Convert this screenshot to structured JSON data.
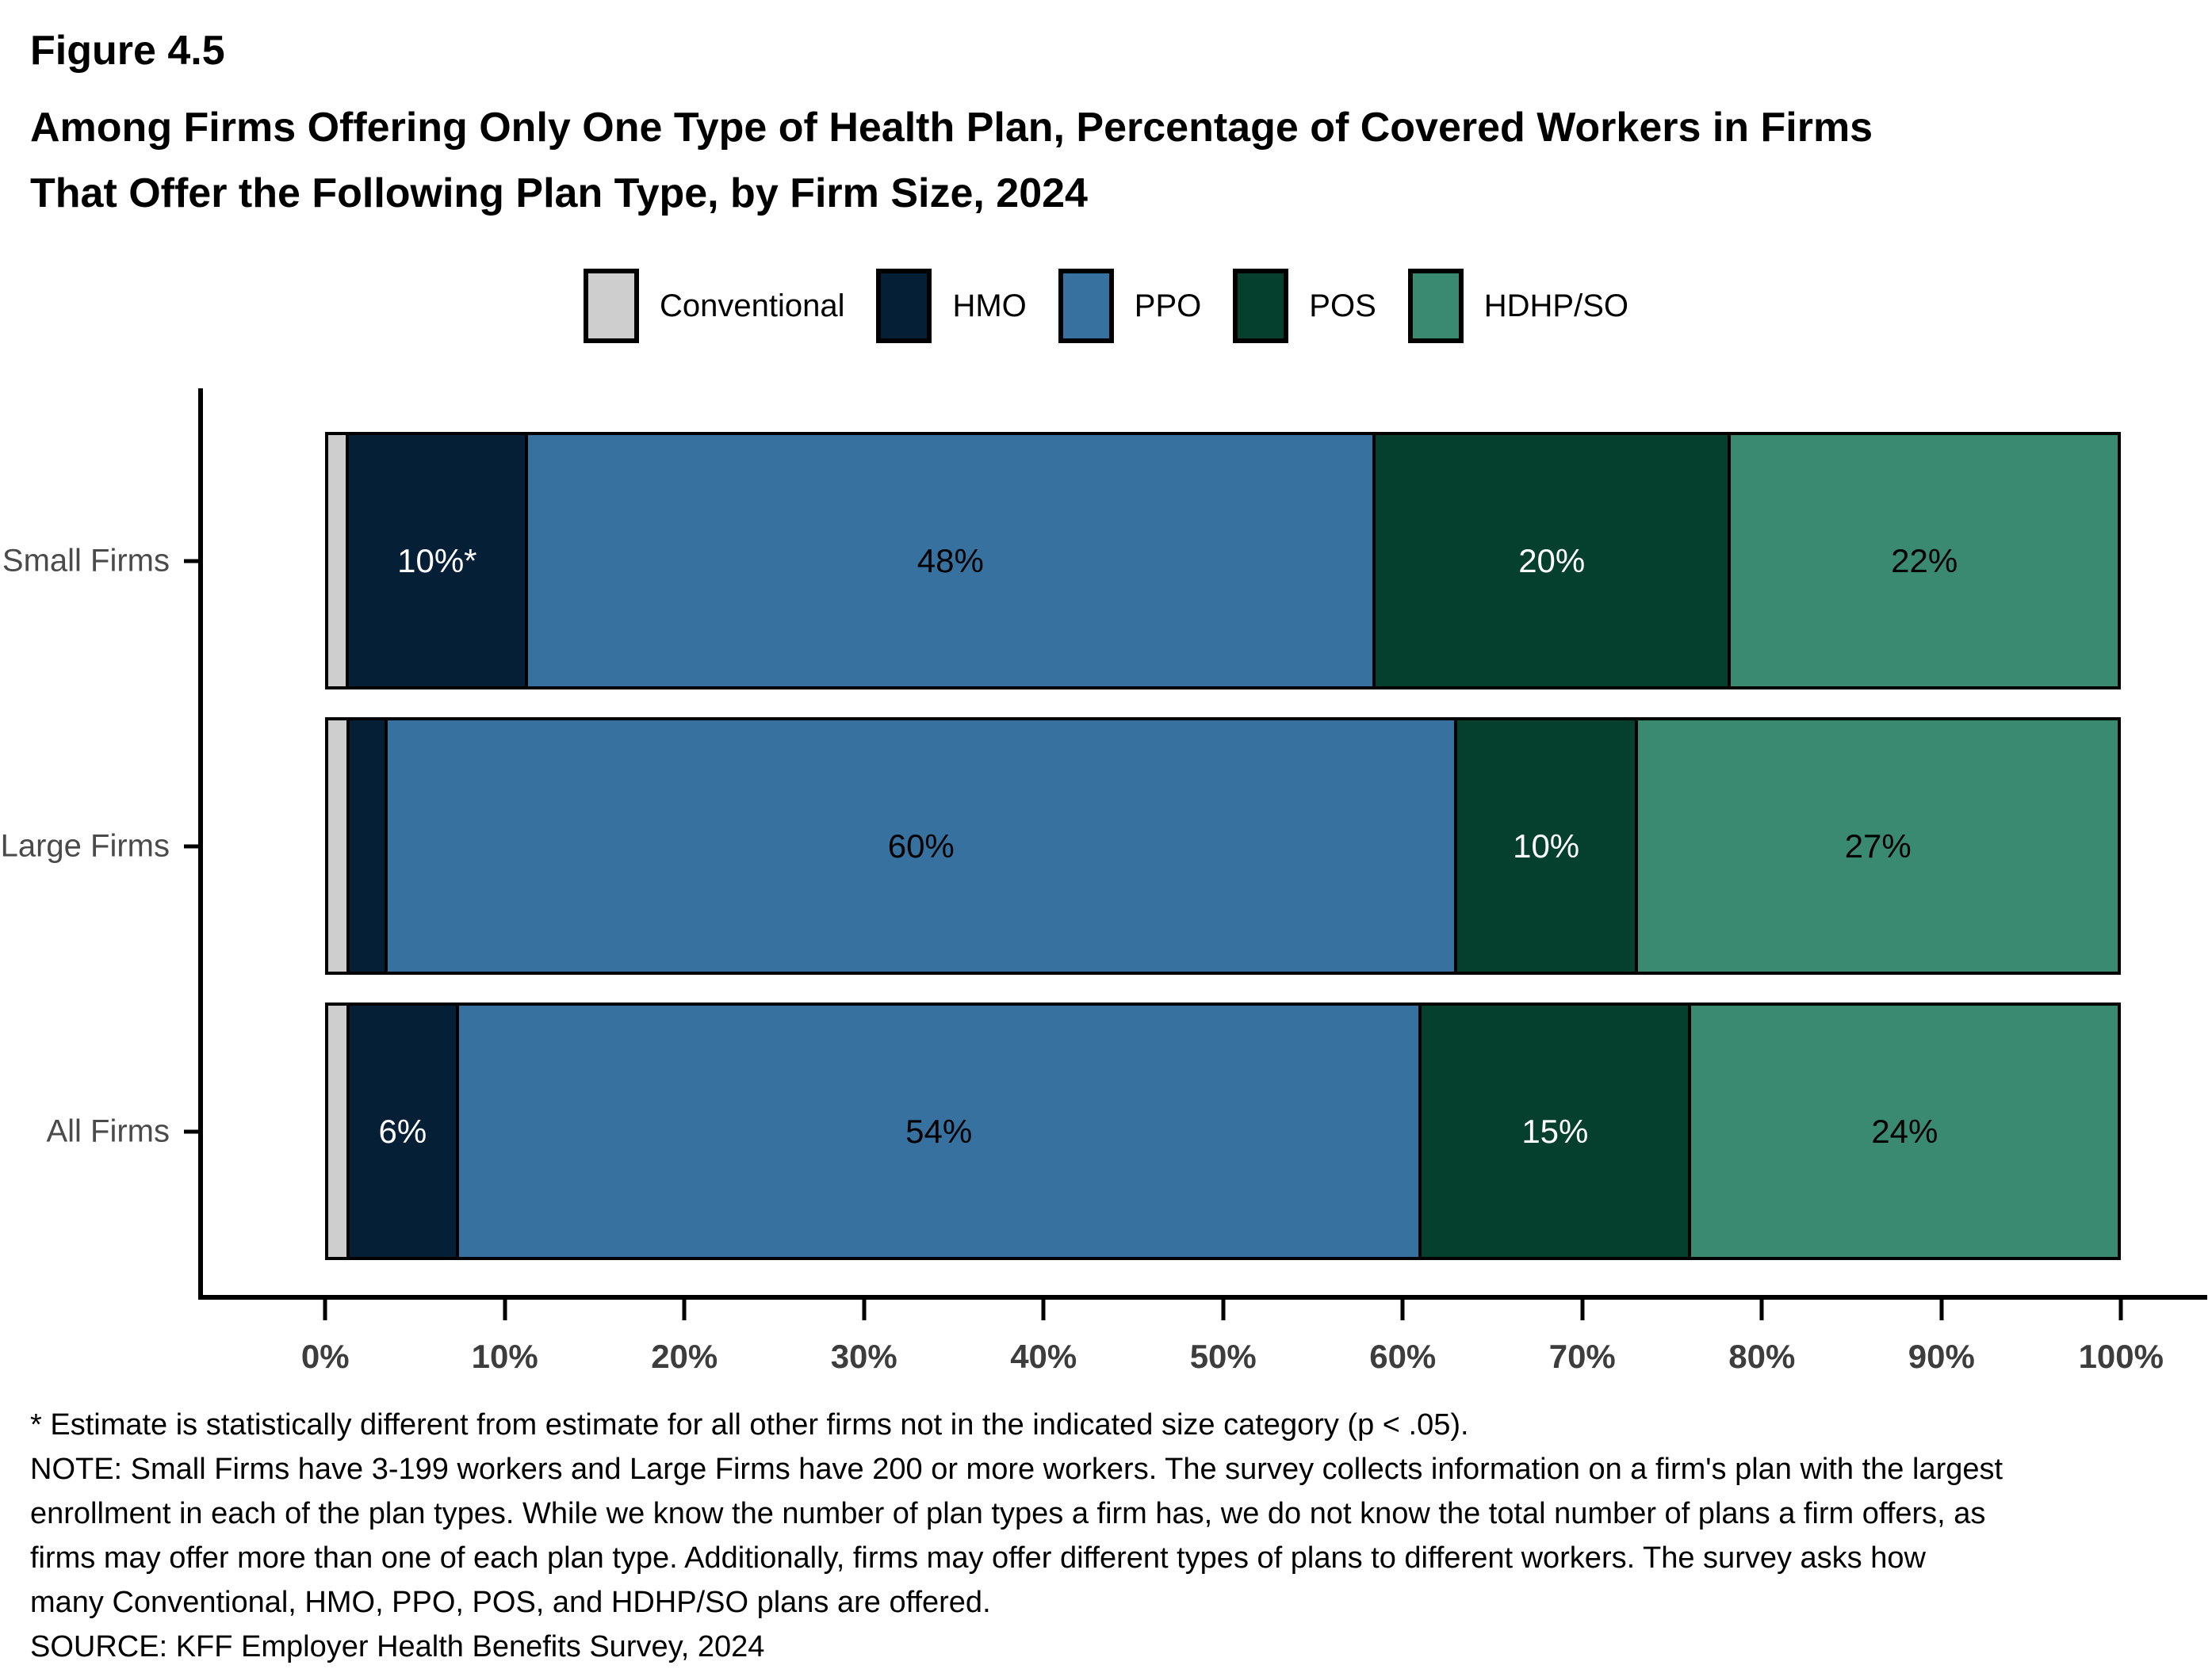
{
  "title": {
    "figure_label": "Figure 4.5",
    "line1": "Among Firms Offering Only One Type of Health Plan, Percentage of Covered Workers in Firms",
    "line2": "That Offer the Following Plan Type, by Firm Size, 2024"
  },
  "legend": [
    {
      "label": "Conventional",
      "color": "#cecece"
    },
    {
      "label": "HMO",
      "color": "#051f36"
    },
    {
      "label": "PPO",
      "color": "#36719f"
    },
    {
      "label": "POS",
      "color": "#05402f"
    },
    {
      "label": "HDHP/SO",
      "color": "#398a71"
    }
  ],
  "chart_data": {
    "type": "bar",
    "orientation": "horizontal",
    "stacked": true,
    "title": "Among Firms Offering Only One Type of Health Plan, Percentage of Covered Workers in Firms That Offer the Following Plan Type, by Firm Size, 2024",
    "categories": [
      "Small Firms",
      "Large Firms",
      "All Firms"
    ],
    "series": [
      {
        "name": "Conventional",
        "color": "#cecece",
        "values": [
          1,
          1,
          1
        ],
        "labels": [
          "",
          "",
          ""
        ],
        "label_color": "#000000"
      },
      {
        "name": "HMO",
        "color": "#051f36",
        "values": [
          10,
          2,
          6
        ],
        "labels": [
          "10%*",
          "",
          "6%"
        ],
        "label_color": "#ffffff"
      },
      {
        "name": "PPO",
        "color": "#36719f",
        "values": [
          48,
          60,
          54
        ],
        "labels": [
          "48%",
          "60%",
          "54%"
        ],
        "label_color": "#000000"
      },
      {
        "name": "POS",
        "color": "#05402f",
        "values": [
          20,
          10,
          15
        ],
        "labels": [
          "20%",
          "10%",
          "15%"
        ],
        "label_color": "#ffffff"
      },
      {
        "name": "HDHP/SO",
        "color": "#398a71",
        "values": [
          22,
          27,
          24
        ],
        "labels": [
          "22%",
          "27%",
          "24%"
        ],
        "label_color": "#000000"
      }
    ],
    "x_axis": {
      "range": [
        0,
        100
      ],
      "tick_labels": [
        "0%",
        "10%",
        "20%",
        "30%",
        "40%",
        "50%",
        "60%",
        "70%",
        "80%",
        "90%",
        "100%"
      ]
    },
    "grid": false,
    "legend_position": "top"
  },
  "footnotes": [
    "* Estimate is statistically different from estimate for all other firms not in the indicated size category (p < .05).",
    "NOTE: Small Firms have 3-199 workers and Large Firms have 200 or more workers. The survey collects information on a firm's plan with the largest",
    "enrollment in each of the plan types. While we know the number of plan types a firm has, we do not know the total number of plans a firm offers, as",
    "firms may offer more than one of each plan type. Additionally, firms may offer different types of plans to different workers. The survey asks how",
    "many Conventional, HMO, PPO, POS, and HDHP/SO plans are offered.",
    "SOURCE: KFF Employer Health Benefits Survey, 2024"
  ]
}
